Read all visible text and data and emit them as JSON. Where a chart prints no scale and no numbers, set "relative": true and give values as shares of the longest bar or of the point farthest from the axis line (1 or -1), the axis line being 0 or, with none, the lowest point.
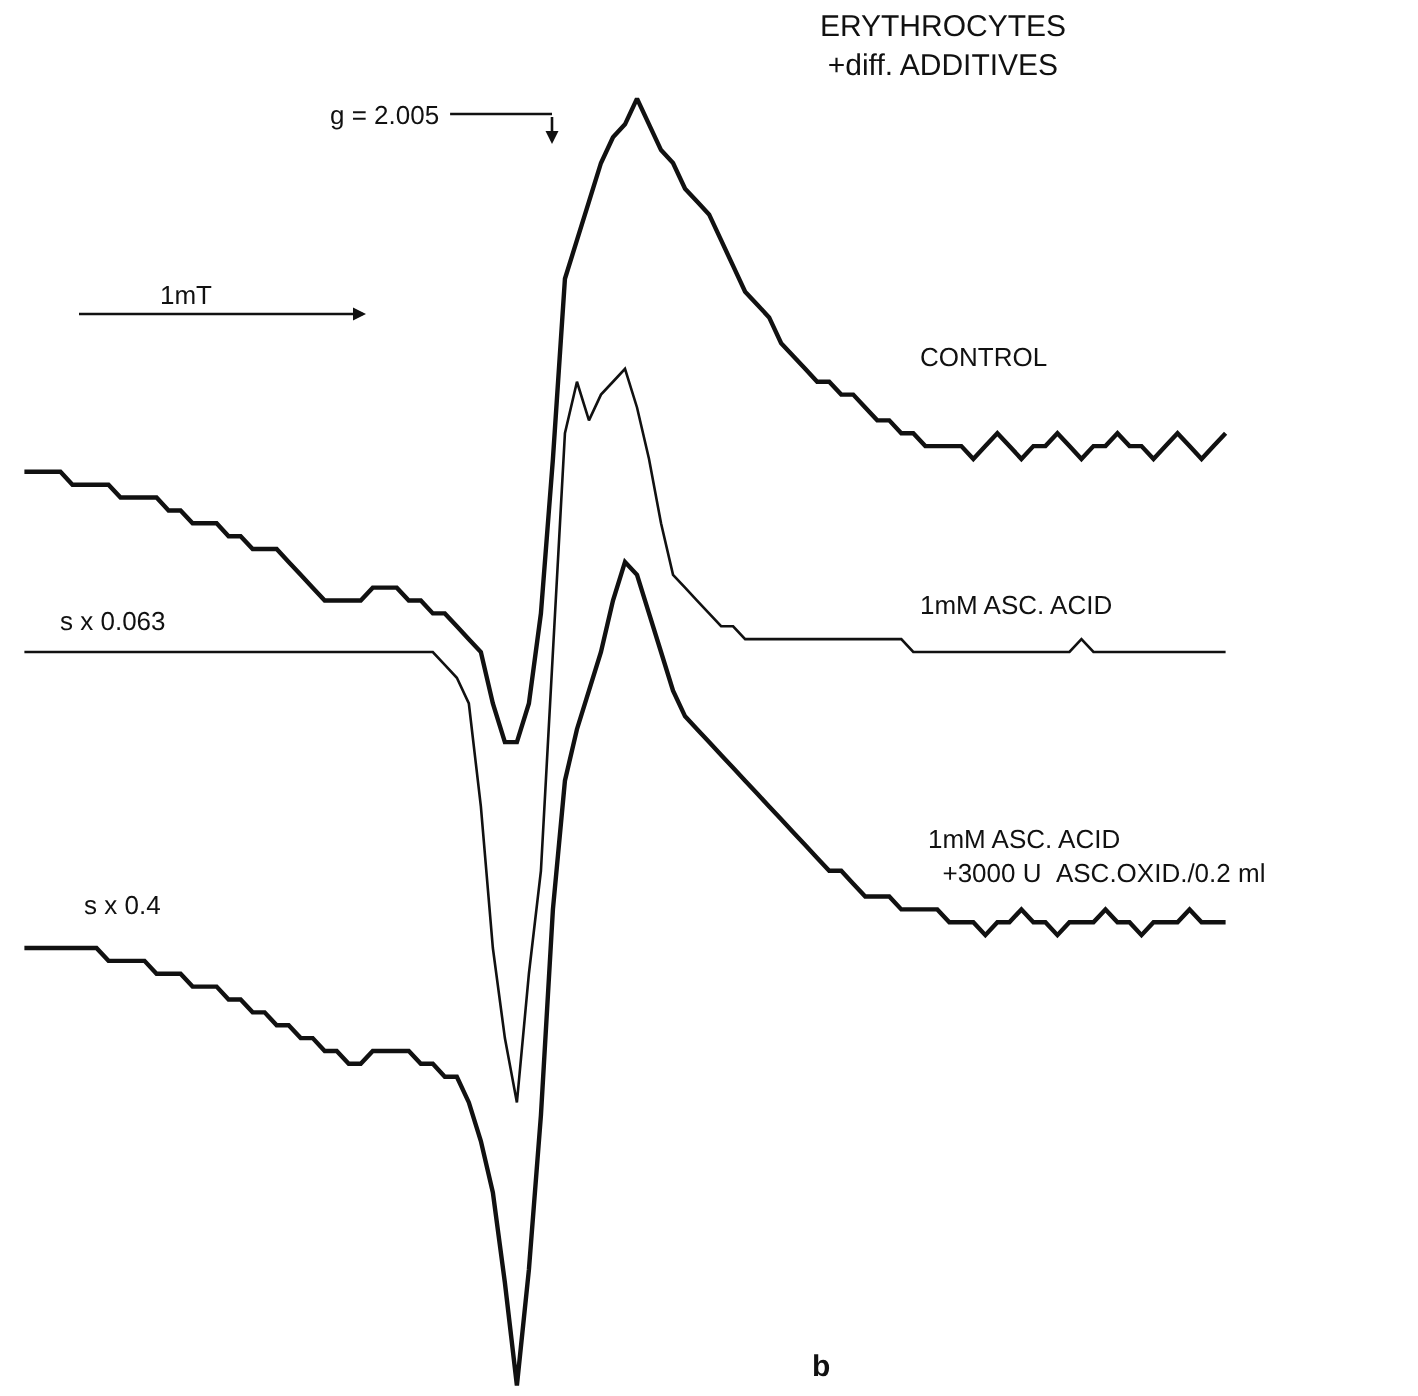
{
  "chart_data": {
    "type": "line",
    "relative": true,
    "title": "ERYTHROCYTES\n+diff. ADDITIVES",
    "categories": [
      null,
      null,
      null,
      null,
      null,
      null,
      null,
      null,
      null,
      null,
      null,
      null,
      null,
      null,
      null,
      null,
      null,
      null,
      null,
      null,
      null,
      null,
      null,
      null,
      null,
      null,
      null,
      null,
      null,
      null,
      null,
      null,
      null,
      null,
      null,
      null,
      null,
      null,
      null,
      null,
      null,
      null,
      null,
      null,
      null,
      null,
      null,
      null,
      null,
      null,
      null,
      null,
      null,
      null,
      null,
      null,
      null,
      null,
      null,
      null,
      null,
      null,
      null,
      null,
      null,
      null,
      null,
      null,
      null,
      null,
      null,
      null,
      null,
      null,
      null,
      null,
      null,
      null,
      null,
      null,
      null,
      null,
      null,
      null,
      null,
      null,
      null,
      null,
      null,
      null,
      null,
      null,
      null,
      null,
      null,
      null,
      null,
      null,
      null,
      null,
      null
    ],
    "series": [
      {
        "name": "CONTROL",
        "color": "#111111",
        "values": [
          0.71,
          0.71,
          0.71,
          0.71,
          0.7,
          0.7,
          0.7,
          0.7,
          0.69,
          0.69,
          0.69,
          0.69,
          0.68,
          0.68,
          0.67,
          0.67,
          0.67,
          0.66,
          0.66,
          0.65,
          0.65,
          0.65,
          0.64,
          0.63,
          0.62,
          0.61,
          0.61,
          0.61,
          0.61,
          0.62,
          0.62,
          0.62,
          0.61,
          0.61,
          0.6,
          0.6,
          0.59,
          0.58,
          0.57,
          0.53,
          0.5,
          0.5,
          0.53,
          0.6,
          0.72,
          0.86,
          0.89,
          0.92,
          0.95,
          0.97,
          0.98,
          1.0,
          0.98,
          0.96,
          0.95,
          0.93,
          0.92,
          0.91,
          0.89,
          0.87,
          0.85,
          0.84,
          0.83,
          0.81,
          0.8,
          0.79,
          0.78,
          0.78,
          0.77,
          0.77,
          0.76,
          0.75,
          0.75,
          0.74,
          0.74,
          0.73,
          0.73,
          0.73,
          0.73,
          0.72,
          0.73,
          0.74,
          0.73,
          0.72,
          0.73,
          0.73,
          0.74,
          0.73,
          0.72,
          0.73,
          0.73,
          0.74,
          0.73,
          0.73,
          0.72,
          0.73,
          0.74,
          0.73,
          0.72,
          0.73,
          0.74
        ]
      },
      {
        "name": "1mM ASC. ACID",
        "color": "#111111",
        "values": [
          0.57,
          0.57,
          0.57,
          0.57,
          0.57,
          0.57,
          0.57,
          0.57,
          0.57,
          0.57,
          0.57,
          0.57,
          0.57,
          0.57,
          0.57,
          0.57,
          0.57,
          0.57,
          0.57,
          0.57,
          0.57,
          0.57,
          0.57,
          0.57,
          0.57,
          0.57,
          0.57,
          0.57,
          0.57,
          0.57,
          0.57,
          0.57,
          0.57,
          0.57,
          0.57,
          0.56,
          0.55,
          0.53,
          0.45,
          0.34,
          0.27,
          0.22,
          0.32,
          0.4,
          0.57,
          0.74,
          0.78,
          0.75,
          0.77,
          0.78,
          0.79,
          0.76,
          0.72,
          0.67,
          0.63,
          0.62,
          0.61,
          0.6,
          0.59,
          0.59,
          0.58,
          0.58,
          0.58,
          0.58,
          0.58,
          0.58,
          0.58,
          0.58,
          0.58,
          0.58,
          0.58,
          0.58,
          0.58,
          0.58,
          0.57,
          0.57,
          0.57,
          0.57,
          0.57,
          0.57,
          0.57,
          0.57,
          0.57,
          0.57,
          0.57,
          0.57,
          0.57,
          0.57,
          0.58,
          0.57,
          0.57,
          0.57,
          0.57,
          0.57,
          0.57,
          0.57,
          0.57,
          0.57,
          0.57,
          0.57,
          0.57
        ]
      },
      {
        "name": "1mM ASC. ACID\n  +3000 U  ASC.OXID./0.2 ml",
        "color": "#111111",
        "values": [
          0.34,
          0.34,
          0.34,
          0.34,
          0.34,
          0.34,
          0.34,
          0.33,
          0.33,
          0.33,
          0.33,
          0.32,
          0.32,
          0.32,
          0.31,
          0.31,
          0.31,
          0.3,
          0.3,
          0.29,
          0.29,
          0.28,
          0.28,
          0.27,
          0.27,
          0.26,
          0.26,
          0.25,
          0.25,
          0.26,
          0.26,
          0.26,
          0.26,
          0.25,
          0.25,
          0.24,
          0.24,
          0.22,
          0.19,
          0.15,
          0.08,
          0.0,
          0.09,
          0.21,
          0.37,
          0.47,
          0.51,
          0.54,
          0.57,
          0.61,
          0.64,
          0.63,
          0.6,
          0.57,
          0.54,
          0.52,
          0.51,
          0.5,
          0.49,
          0.48,
          0.47,
          0.46,
          0.45,
          0.44,
          0.43,
          0.42,
          0.41,
          0.4,
          0.4,
          0.39,
          0.38,
          0.38,
          0.38,
          0.37,
          0.37,
          0.37,
          0.37,
          0.36,
          0.36,
          0.36,
          0.35,
          0.36,
          0.36,
          0.37,
          0.36,
          0.36,
          0.35,
          0.36,
          0.36,
          0.36,
          0.37,
          0.36,
          0.36,
          0.35,
          0.36,
          0.36,
          0.36,
          0.37,
          0.36,
          0.36,
          0.36
        ]
      }
    ],
    "annotations": [
      "g = 2.005",
      "1mT",
      "s x 0.063",
      "s x 0.4",
      "b"
    ],
    "grid": false,
    "legend": false,
    "marker": "none",
    "line_style": "solid"
  }
}
